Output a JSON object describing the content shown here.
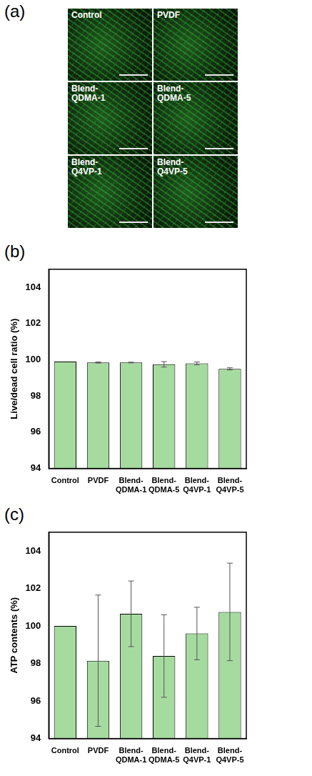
{
  "image_panel": {
    "label": "(a)",
    "cells": [
      "Control",
      "PVDF",
      "Blend-QDMA-1",
      "Blend-QDMA-5",
      "Blend-Q4VP-1",
      "Blend-Q4VP-5"
    ]
  },
  "chart_data": [
    {
      "type": "bar",
      "label": "(b)",
      "y_label": "Live/dead cell ratio (%)",
      "categories": [
        "Control",
        "PVDF",
        "Blend-QDMA-1",
        "Blend-QDMA-5",
        "Blend-Q4VP-1",
        "Blend-Q4VP-5"
      ],
      "values": [
        99.9,
        99.85,
        99.85,
        99.75,
        99.8,
        99.5
      ],
      "errors": [
        null,
        0.03,
        0.02,
        0.15,
        0.08,
        0.06
      ],
      "color": "#a6dba0",
      "ylim": [
        94,
        105
      ],
      "yticks": [
        94,
        96,
        98,
        100,
        102,
        104
      ],
      "grid": false
    },
    {
      "type": "bar",
      "label": "(c)",
      "y_label": "ATP contents (%)",
      "categories": [
        "Control",
        "PVDF",
        "Blend-QDMA-1",
        "Blend-QDMA-5",
        "Blend-Q4VP-1",
        "Blend-Q4VP-5"
      ],
      "values": [
        100,
        98.15,
        100.65,
        98.4,
        99.6,
        100.75
      ],
      "errors": [
        null,
        3.5,
        1.75,
        2.2,
        1.4,
        2.6
      ],
      "color": "#a6dba0",
      "ylim": [
        94,
        105
      ],
      "yticks": [
        94,
        96,
        98,
        100,
        102,
        104
      ],
      "grid": false
    }
  ]
}
